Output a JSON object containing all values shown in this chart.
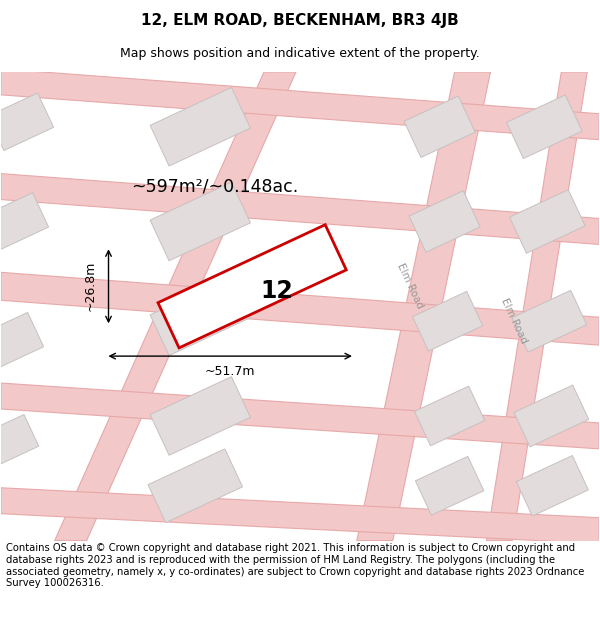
{
  "title": "12, ELM ROAD, BECKENHAM, BR3 4JB",
  "subtitle": "Map shows position and indicative extent of the property.",
  "footer": "Contains OS data © Crown copyright and database right 2021. This information is subject to Crown copyright and database rights 2023 and is reproduced with the permission of HM Land Registry. The polygons (including the associated geometry, namely x, y co-ordinates) are subject to Crown copyright and database rights 2023 Ordnance Survey 100026316.",
  "map_bg": "#f7f3f3",
  "road_fill": "#f2c8c8",
  "road_edge": "#e8a8a8",
  "block_fill": "#e2dcdc",
  "block_edge": "#c8c0c0",
  "prop_fill": "#ffffff",
  "prop_edge": "#cc0000",
  "area_text": "~597m²/~0.148ac.",
  "width_text": "~51.7m",
  "height_text": "~26.8m",
  "label_text": "12",
  "road_label": "Elm Road",
  "title_fontsize": 11,
  "subtitle_fontsize": 9,
  "footer_fontsize": 7.2
}
